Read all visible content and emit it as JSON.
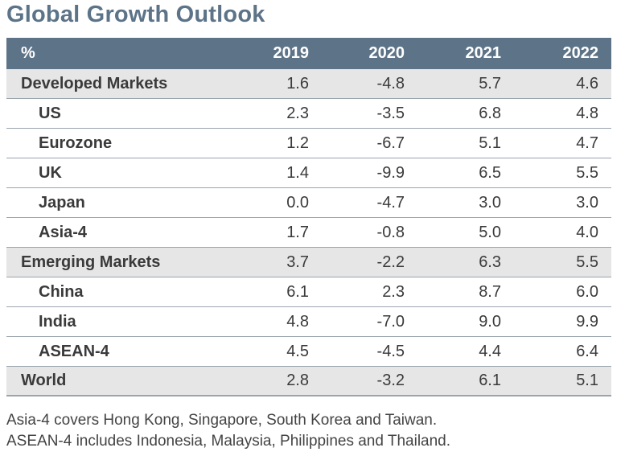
{
  "title": "Global Growth Outlook",
  "chart_data": {
    "type": "table",
    "title": "Global Growth Outlook",
    "columns": [
      "%",
      "2019",
      "2020",
      "2021",
      "2022"
    ],
    "rows": [
      {
        "label": "Developed Markets",
        "level": "group",
        "values": [
          "1.6",
          "-4.8",
          "5.7",
          "4.6"
        ]
      },
      {
        "label": "US",
        "level": "sub",
        "values": [
          "2.3",
          "-3.5",
          "6.8",
          "4.8"
        ]
      },
      {
        "label": "Eurozone",
        "level": "sub",
        "values": [
          "1.2",
          "-6.7",
          "5.1",
          "4.7"
        ]
      },
      {
        "label": "UK",
        "level": "sub",
        "values": [
          "1.4",
          "-9.9",
          "6.5",
          "5.5"
        ]
      },
      {
        "label": "Japan",
        "level": "sub",
        "values": [
          "0.0",
          "-4.7",
          "3.0",
          "3.0"
        ]
      },
      {
        "label": "Asia-4",
        "level": "sub",
        "values": [
          "1.7",
          "-0.8",
          "5.0",
          "4.0"
        ]
      },
      {
        "label": "Emerging Markets",
        "level": "group",
        "values": [
          "3.7",
          "-2.2",
          "6.3",
          "5.5"
        ]
      },
      {
        "label": "China",
        "level": "sub",
        "values": [
          "6.1",
          "2.3",
          "8.7",
          "6.0"
        ]
      },
      {
        "label": "India",
        "level": "sub",
        "values": [
          "4.8",
          "-7.0",
          "9.0",
          "9.9"
        ]
      },
      {
        "label": "ASEAN-4",
        "level": "sub",
        "values": [
          "4.5",
          "-4.5",
          "4.4",
          "6.4"
        ]
      },
      {
        "label": "World",
        "level": "group",
        "values": [
          "2.8",
          "-3.2",
          "6.1",
          "5.1"
        ]
      }
    ]
  },
  "notes": [
    "Asia-4 covers Hong Kong, Singapore, South Korea and Taiwan.",
    "ASEAN-4 includes Indonesia, Malaysia, Philippines and Thailand."
  ],
  "colors": {
    "header_bg": "#5d7488",
    "group_bg": "#e6e6e6",
    "title": "#5d7488"
  }
}
